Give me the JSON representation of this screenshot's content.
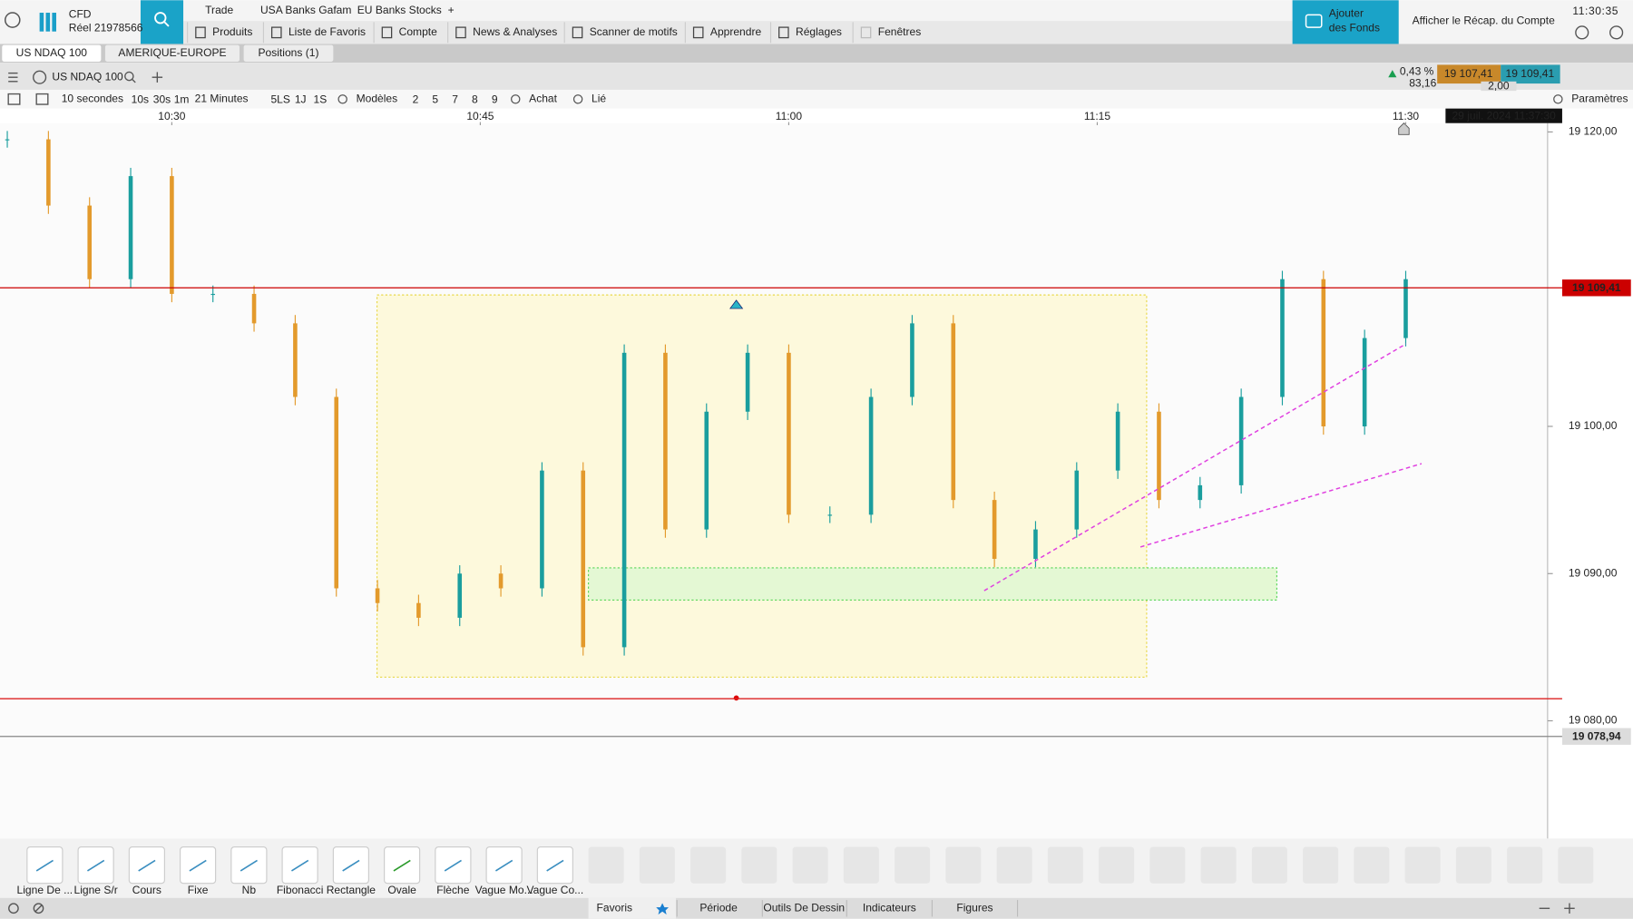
{
  "header": {
    "account_type": "CFD",
    "account_number": "Réel 21978566",
    "tabs": [
      "Trade",
      "USA Banks Gafam",
      "EU Banks Stocks"
    ],
    "menu": [
      "Produits",
      "Liste de Favoris",
      "Compte",
      "News & Analyses",
      "Scanner de motifs",
      "Apprendre",
      "Réglages",
      "Fenêtres"
    ],
    "add_funds": [
      "Ajouter",
      "des Fonds"
    ],
    "account_summary": "Afficher le Récap. du Compte",
    "clock": "11:30:35"
  },
  "window_tabs": [
    "US NDAQ 100",
    "AMERIQUE-EUROPE",
    "Positions (1)"
  ],
  "instrument": {
    "name": "US NDAQ 100",
    "change_pct": "0,43 %",
    "change": "83,16",
    "bid": "19 107,41",
    "spread": "2,00",
    "ask": "19 109,41"
  },
  "toolbar": {
    "interval": "10 secondes",
    "quick_intervals": [
      "10s",
      "30s",
      "1m"
    ],
    "range": "21 Minutes",
    "quick_ranges": [
      "5LS",
      "1J",
      "1S"
    ],
    "templates": "Modèles",
    "template_slots": [
      "2",
      "5",
      "7",
      "8",
      "9"
    ],
    "order": "Achat",
    "linked": "Lié",
    "settings": "Paramètres"
  },
  "chart_data": {
    "type": "candlestick",
    "up_color": "#1a9e9e",
    "down_color": "#e39a2c",
    "x": [
      "10:22",
      "10:24",
      "10:26",
      "10:28",
      "10:30",
      "10:32",
      "10:34",
      "10:36",
      "10:38",
      "10:40",
      "10:42",
      "10:44",
      "10:46",
      "10:48",
      "10:50",
      "10:52",
      "10:54",
      "10:56",
      "10:58",
      "11:00",
      "11:02",
      "11:04",
      "11:06",
      "11:08",
      "11:10",
      "11:12",
      "11:14",
      "11:16",
      "11:18",
      "11:20",
      "11:22",
      "11:24",
      "11:26",
      "11:28",
      "11:30"
    ],
    "values": [
      19119.5,
      19115,
      19110,
      19117,
      19109,
      19109,
      19107,
      19102,
      19089,
      19088,
      19087,
      19090,
      19089,
      19097,
      19085,
      19105,
      19093,
      19101,
      19105,
      19094,
      19094,
      19102,
      19107,
      19095,
      19091,
      19093,
      19097,
      19101,
      19095,
      19096,
      19102,
      19110,
      19100,
      19106,
      19110
    ],
    "xlim": [
      "10:22",
      "11:37"
    ],
    "xticks": [
      "10:30",
      "10:45",
      "11:00",
      "11:15",
      "11:30"
    ],
    "ylim": [
      19072,
      19120.6
    ],
    "yticks": [
      {
        "value": 19120,
        "label": "19 120,00"
      },
      {
        "value": 19100,
        "label": "19 100,00"
      },
      {
        "value": 19090,
        "label": "19 090,00"
      },
      {
        "value": 19080,
        "label": "19 080,00"
      }
    ],
    "price_lines": [
      {
        "value": 19109.41,
        "label": "19 109,41",
        "color": "#cc0000"
      },
      {
        "value": 19078.94,
        "label": "19 078,94",
        "color": "#888888"
      }
    ],
    "support_line": {
      "value": 19081.5,
      "color": "#dd2222"
    },
    "cursor_label": "29 juil. 2024 11:37:30"
  },
  "drawing_tools": [
    "Ligne De ...",
    "Ligne S/r",
    "Cours",
    "Fixe",
    "Nb",
    "Fibonacci",
    "Rectangle",
    "Ovale",
    "Flèche",
    "Vague Mo...",
    "Vague Co..."
  ],
  "bottom_tabs": [
    "Favoris",
    "Période",
    "Outils De Dessin",
    "Indicateurs",
    "Figures"
  ]
}
